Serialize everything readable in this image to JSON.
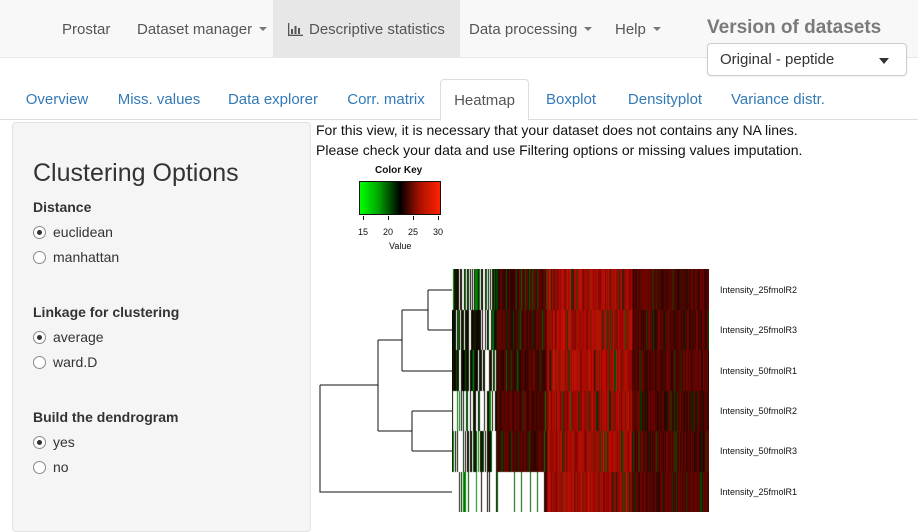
{
  "navbar": {
    "items": [
      {
        "label": "Prostar",
        "dropdown": false
      },
      {
        "label": "Dataset manager",
        "dropdown": true
      },
      {
        "label": "Descriptive statistics",
        "dropdown": false,
        "active": true,
        "icon": "bar-chart-icon"
      },
      {
        "label": "Data processing",
        "dropdown": true
      },
      {
        "label": "Help",
        "dropdown": true
      }
    ],
    "version_title": "Version of datasets",
    "version_selected": "Original - peptide"
  },
  "tabs": [
    {
      "label": "Overview"
    },
    {
      "label": "Miss. values"
    },
    {
      "label": "Data explorer"
    },
    {
      "label": "Corr. matrix"
    },
    {
      "label": "Heatmap",
      "active": true
    },
    {
      "label": "Boxplot"
    },
    {
      "label": "Densityplot"
    },
    {
      "label": "Variance distr."
    }
  ],
  "sidebar": {
    "title": "Clustering Options",
    "distance": {
      "label": "Distance",
      "options": [
        {
          "label": "euclidean",
          "checked": true
        },
        {
          "label": "manhattan",
          "checked": false
        }
      ]
    },
    "linkage": {
      "label": "Linkage for clustering",
      "options": [
        {
          "label": "average",
          "checked": true
        },
        {
          "label": "ward.D",
          "checked": false
        }
      ]
    },
    "dendrogram": {
      "label": "Build the dendrogram",
      "options": [
        {
          "label": "yes",
          "checked": true
        },
        {
          "label": "no",
          "checked": false
        }
      ]
    }
  },
  "main": {
    "message_line1": "For this view, it is necessary that your dataset does not contains any NA lines.",
    "message_line2": "Please check your data and use Filtering options or missing values imputation.",
    "color_key": {
      "title": "Color Key",
      "ticks": [
        "15",
        "20",
        "25",
        "30"
      ],
      "xlabel": "Value",
      "colors": [
        "#00ff00",
        "#000000",
        "#ff2200"
      ]
    },
    "row_labels": [
      "Intensity_25fmolR2",
      "Intensity_25fmolR3",
      "Intensity_50fmolR1",
      "Intensity_50fmolR2",
      "Intensity_50fmolR3",
      "Intensity_25fmolR1"
    ]
  },
  "colors": {
    "link": "#337ab7",
    "navbar_bg": "#f8f8f8",
    "active_nav_bg": "#e7e7e7",
    "sidebar_bg": "#f5f5f5"
  }
}
